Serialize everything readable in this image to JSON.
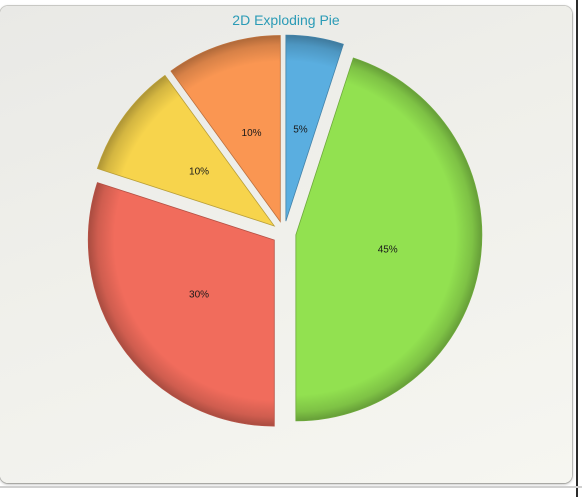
{
  "chart_data": {
    "type": "pie",
    "title": "2D Exploding Pie",
    "exploded": true,
    "slices": [
      {
        "value": 5,
        "label": "5%",
        "color": "#5aaee0"
      },
      {
        "value": 45,
        "label": "45%",
        "color": "#92e150"
      },
      {
        "value": 30,
        "label": "30%",
        "color": "#f16c5c"
      },
      {
        "value": 10,
        "label": "10%",
        "color": "#f7d44c"
      },
      {
        "value": 10,
        "label": "10%",
        "color": "#fa9652"
      }
    ]
  }
}
